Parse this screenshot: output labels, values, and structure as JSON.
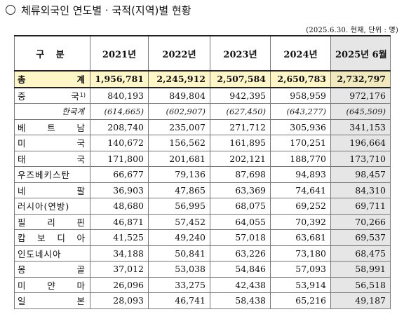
{
  "title": "체류외국인 연도별 · 국적(지역)별 현황",
  "unit_note": "(2025.6.30. 현재, 단위 : 명)",
  "headers": [
    "구 분",
    "2021년",
    "2022년",
    "2023년",
    "2024년",
    "2025년 6월"
  ],
  "total": {
    "label": "총 계",
    "values": [
      "1,956,781",
      "2,245,912",
      "2,507,584",
      "2,650,783",
      "2,732,797"
    ]
  },
  "rows": [
    {
      "label": "중 국",
      "note": "1)",
      "values": [
        "840,193",
        "849,804",
        "942,395",
        "958,959",
        "972,176"
      ]
    },
    {
      "label": "한국계",
      "sub": true,
      "values": [
        "(614,665)",
        "(602,907)",
        "(627,450)",
        "(643,277)",
        "(645,509)"
      ]
    },
    {
      "label": "베 트 남",
      "values": [
        "208,740",
        "235,007",
        "271,712",
        "305,936",
        "341,153"
      ]
    },
    {
      "label": "미 국",
      "values": [
        "140,672",
        "156,562",
        "161,895",
        "170,251",
        "196,664"
      ]
    },
    {
      "label": "태 국",
      "values": [
        "171,800",
        "201,681",
        "202,121",
        "188,770",
        "173,710"
      ]
    },
    {
      "label": "우즈베키스탄",
      "values": [
        "66,677",
        "79,136",
        "87,698",
        "94,893",
        "98,457"
      ]
    },
    {
      "label": "네 팔",
      "values": [
        "36,903",
        "47,865",
        "63,369",
        "74,641",
        "84,310"
      ]
    },
    {
      "label": "러시아(연방)",
      "values": [
        "48,680",
        "56,995",
        "68,075",
        "69,252",
        "69,711"
      ]
    },
    {
      "label": "필 리 핀",
      "values": [
        "46,871",
        "57,452",
        "64,055",
        "70,392",
        "70,266"
      ]
    },
    {
      "label": "캄 보 디 아",
      "values": [
        "41,525",
        "49,240",
        "57,018",
        "63,681",
        "69,537"
      ]
    },
    {
      "label": "인도네시아",
      "values": [
        "34,188",
        "50,841",
        "63,226",
        "73,180",
        "68,475"
      ]
    },
    {
      "label": "몽 골",
      "values": [
        "37,012",
        "53,038",
        "54,846",
        "57,093",
        "58,991"
      ]
    },
    {
      "label": "미 얀 마",
      "values": [
        "26,096",
        "33,275",
        "42,438",
        "53,914",
        "56,518"
      ]
    },
    {
      "label": "일 본",
      "values": [
        "28,093",
        "46,741",
        "58,438",
        "65,216",
        "49,187"
      ]
    }
  ]
}
